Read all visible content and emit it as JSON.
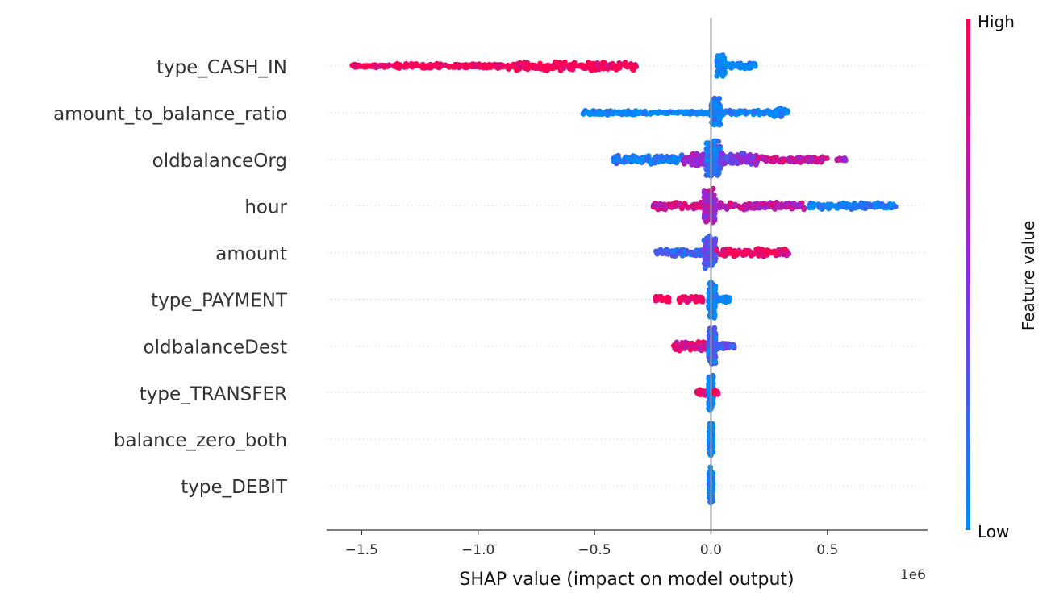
{
  "chart_data": {
    "type": "scatter",
    "subtype": "shap-beeswarm",
    "title": "",
    "xlabel": "SHAP value (impact on model output)",
    "x_offset_label": "1e6",
    "xlim": [
      -1650000,
      930000
    ],
    "x_ticks": [
      {
        "value": -1500000,
        "label": "−1.5"
      },
      {
        "value": -1000000,
        "label": "−1.0"
      },
      {
        "value": -500000,
        "label": "−0.5"
      },
      {
        "value": 0,
        "label": "0.0"
      },
      {
        "value": 500000,
        "label": "0.5"
      }
    ],
    "colorbar": {
      "label": "Feature value",
      "high": "High",
      "low": "Low",
      "high_color": "#ff0052",
      "mid_color": "#8a2be2",
      "low_color": "#008bfb"
    },
    "features": [
      {
        "name": "type_CASH_IN",
        "clusters": [
          {
            "x_min": -1540000,
            "x_max": -1380000,
            "fv": 1.0,
            "spread": 2
          },
          {
            "x_min": -1360000,
            "x_max": -870000,
            "fv": 1.0,
            "spread": 3
          },
          {
            "x_min": -870000,
            "x_max": -320000,
            "fv": 1.0,
            "spread": 6
          },
          {
            "x_min": 25000,
            "x_max": 60000,
            "fv": 0.0,
            "spread": 14
          },
          {
            "x_min": 60000,
            "x_max": 190000,
            "fv": 0.0,
            "spread": 4
          }
        ]
      },
      {
        "name": "amount_to_balance_ratio",
        "clusters": [
          {
            "x_min": -550000,
            "x_max": -300000,
            "fv": 0.0,
            "spread": 3
          },
          {
            "x_min": -300000,
            "x_max": 0,
            "fv": 0.0,
            "spread": 2
          },
          {
            "x_min": 0,
            "x_max": 40000,
            "fv": 0.05,
            "spread": 20
          },
          {
            "x_min": 40000,
            "x_max": 270000,
            "fv": 0.05,
            "spread": 3
          },
          {
            "x_min": 270000,
            "x_max": 330000,
            "fv": 0.0,
            "spread": 6
          }
        ]
      },
      {
        "name": "oldbalanceOrg",
        "clusters": [
          {
            "x_min": -420000,
            "x_max": -120000,
            "fv": 0.1,
            "spread": 6
          },
          {
            "x_min": -120000,
            "x_max": 0,
            "fv": 0.6,
            "spread": 8
          },
          {
            "x_min": -20000,
            "x_max": 40000,
            "fv": 0.1,
            "spread": 24
          },
          {
            "x_min": 40000,
            "x_max": 200000,
            "fv": 0.45,
            "spread": 8
          },
          {
            "x_min": 200000,
            "x_max": 500000,
            "fv": 0.75,
            "spread": 4
          },
          {
            "x_min": 540000,
            "x_max": 580000,
            "fv": 0.6,
            "spread": 2
          }
        ]
      },
      {
        "name": "hour",
        "clusters": [
          {
            "x_min": -250000,
            "x_max": -30000,
            "fv": 0.8,
            "spread": 5
          },
          {
            "x_min": -30000,
            "x_max": 20000,
            "fv": 0.6,
            "spread": 24
          },
          {
            "x_min": 20000,
            "x_max": 400000,
            "fv": 0.7,
            "spread": 5
          },
          {
            "x_min": 420000,
            "x_max": 800000,
            "fv": 0.05,
            "spread": 4
          }
        ]
      },
      {
        "name": "amount",
        "clusters": [
          {
            "x_min": -240000,
            "x_max": -30000,
            "fv": 0.2,
            "spread": 5
          },
          {
            "x_min": -30000,
            "x_max": 20000,
            "fv": 0.3,
            "spread": 22
          },
          {
            "x_min": 20000,
            "x_max": 340000,
            "fv": 0.9,
            "spread": 5
          }
        ]
      },
      {
        "name": "type_PAYMENT",
        "clusters": [
          {
            "x_min": -240000,
            "x_max": -180000,
            "fv": 1.0,
            "spread": 4
          },
          {
            "x_min": -140000,
            "x_max": -30000,
            "fv": 1.0,
            "spread": 4
          },
          {
            "x_min": -10000,
            "x_max": 20000,
            "fv": 0.0,
            "spread": 24
          },
          {
            "x_min": 20000,
            "x_max": 80000,
            "fv": 0.0,
            "spread": 4
          }
        ]
      },
      {
        "name": "oldbalanceDest",
        "clusters": [
          {
            "x_min": -160000,
            "x_max": -20000,
            "fv": 0.85,
            "spread": 7
          },
          {
            "x_min": -10000,
            "x_max": 20000,
            "fv": 0.2,
            "spread": 24
          },
          {
            "x_min": 20000,
            "x_max": 100000,
            "fv": 0.3,
            "spread": 4
          }
        ]
      },
      {
        "name": "type_TRANSFER",
        "clusters": [
          {
            "x_min": -60000,
            "x_max": -10000,
            "fv": 1.0,
            "spread": 4
          },
          {
            "x_min": -10000,
            "x_max": 10000,
            "fv": 0.0,
            "spread": 24
          },
          {
            "x_min": 10000,
            "x_max": 30000,
            "fv": 1.0,
            "spread": 3
          }
        ]
      },
      {
        "name": "balance_zero_both",
        "clusters": [
          {
            "x_min": -8000,
            "x_max": 8000,
            "fv": 0.0,
            "spread": 24
          }
        ]
      },
      {
        "name": "type_DEBIT",
        "clusters": [
          {
            "x_min": -8000,
            "x_max": 8000,
            "fv": 0.0,
            "spread": 24
          }
        ]
      }
    ]
  }
}
